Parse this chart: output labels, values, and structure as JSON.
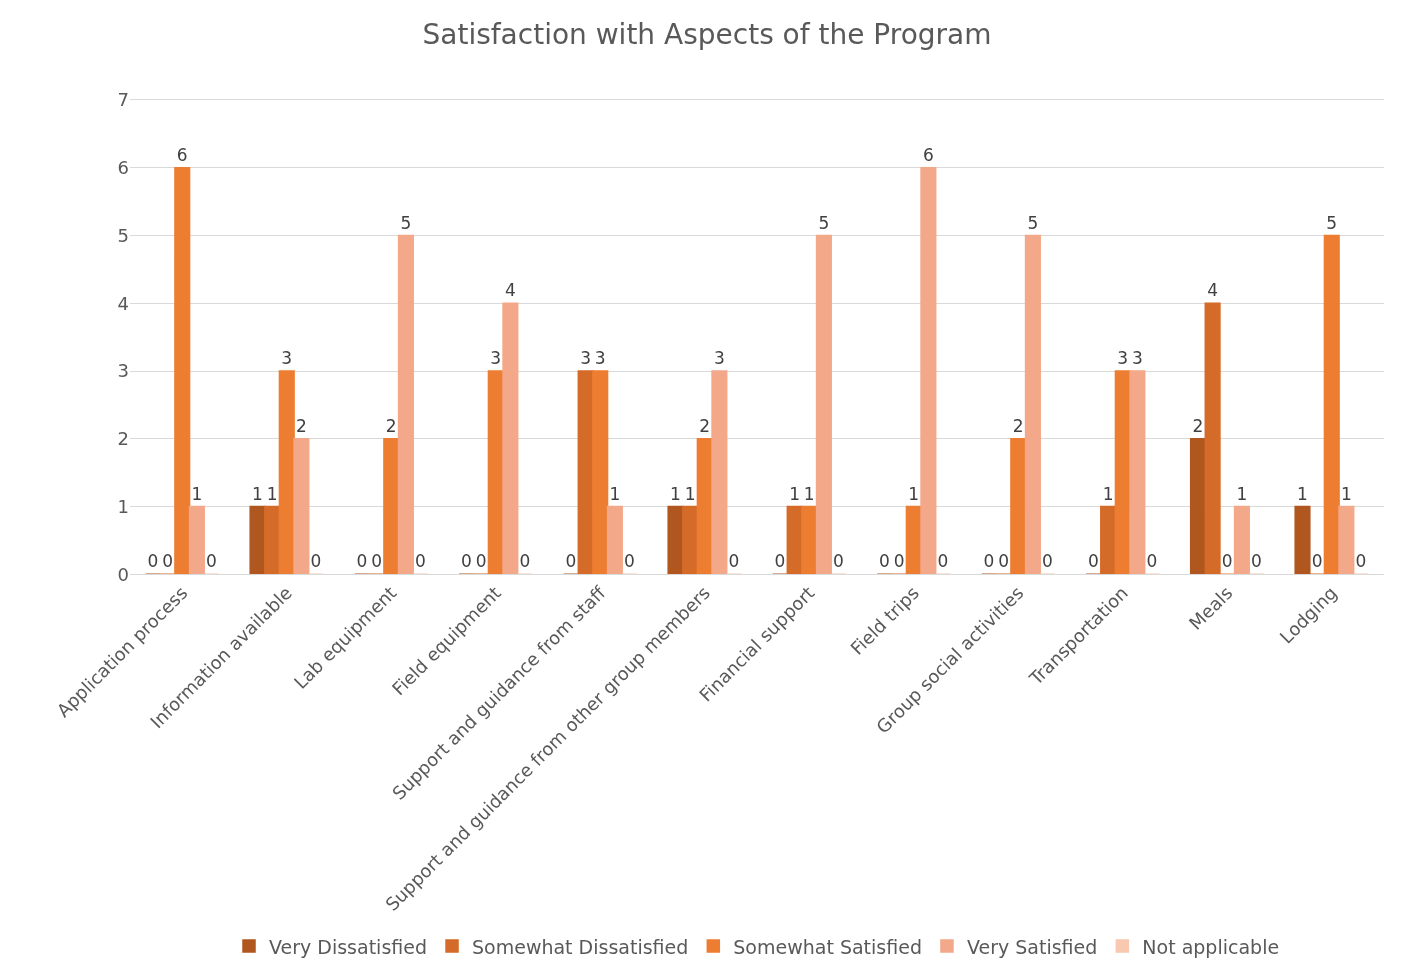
{
  "chart_data": {
    "type": "bar",
    "title": "Satisfaction with Aspects of the Program",
    "categories": [
      "Application process",
      "Information available",
      "Lab equipment",
      "Field equipment",
      "Support and guidance from staff",
      "Support and guidance from other group members",
      "Financial support",
      "Field trips",
      "Group social activities",
      "Transportation",
      "Meals",
      "Lodging"
    ],
    "series": [
      {
        "name": "Very Dissatisfied",
        "color": "#b0561f",
        "values": [
          0,
          1,
          0,
          0,
          0,
          1,
          0,
          0,
          0,
          0,
          2,
          1
        ]
      },
      {
        "name": "Somewhat Dissatisfied",
        "color": "#d56b29",
        "values": [
          0,
          1,
          0,
          0,
          3,
          1,
          1,
          0,
          0,
          1,
          4,
          0
        ]
      },
      {
        "name": "Somewhat Satisfied",
        "color": "#ed7d31",
        "values": [
          6,
          3,
          2,
          3,
          3,
          2,
          1,
          1,
          2,
          3,
          0,
          5
        ]
      },
      {
        "name": "Very Satisfied",
        "color": "#f3a889",
        "values": [
          1,
          2,
          5,
          4,
          1,
          3,
          5,
          6,
          5,
          3,
          1,
          1
        ]
      },
      {
        "name": "Not applicable",
        "color": "#f8c9b0",
        "values": [
          0,
          0,
          0,
          0,
          0,
          0,
          0,
          0,
          0,
          0,
          0,
          0
        ]
      }
    ],
    "ylim": [
      0,
      7
    ],
    "yticks": [
      0,
      1,
      2,
      3,
      4,
      5,
      6,
      7
    ],
    "grid": "y",
    "legend": "bottom",
    "data_labels": true
  }
}
